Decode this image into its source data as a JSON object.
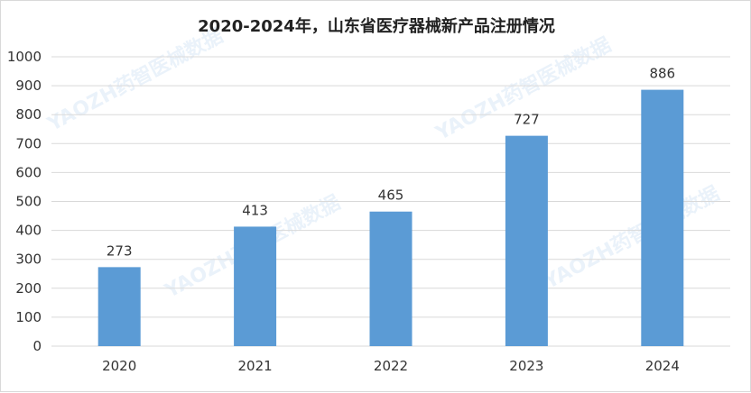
{
  "chart_data": {
    "type": "bar",
    "title": "2020-2024年，山东省医疗器械新产品注册情况",
    "categories": [
      "2020",
      "2021",
      "2022",
      "2023",
      "2024"
    ],
    "values": [
      273,
      413,
      465,
      727,
      886
    ],
    "ylim": [
      0,
      1000
    ],
    "yticks": [
      0,
      100,
      200,
      300,
      400,
      500,
      600,
      700,
      800,
      900,
      1000
    ],
    "grid": true,
    "legend": "none",
    "bar_color": "#5b9bd5",
    "grid_color": "#d9d9d9"
  },
  "watermark": "YAOZH药智医械数据"
}
